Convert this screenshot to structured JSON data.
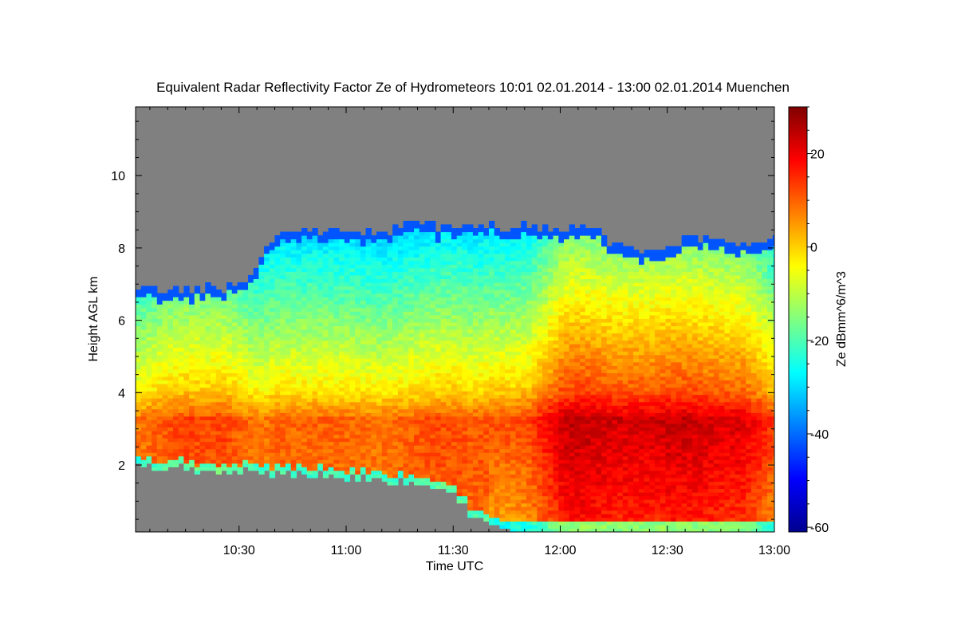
{
  "chart_data": {
    "type": "heatmap",
    "title": "Equivalent Radar Reflectivity Factor Ze of Hydrometeors   10:01 02.01.2014 - 13:00 02.01.2014 Muenchen",
    "xlabel": "Time UTC",
    "ylabel": "Height AGL km",
    "colorbar_label": "Ze dBmm^6/m^3",
    "x_range_minutes_utc": [
      601,
      780
    ],
    "x_ticks": [
      {
        "minutes": 630,
        "label": "10:30"
      },
      {
        "minutes": 660,
        "label": "11:00"
      },
      {
        "minutes": 690,
        "label": "11:30"
      },
      {
        "minutes": 720,
        "label": "12:00"
      },
      {
        "minutes": 750,
        "label": "12:30"
      },
      {
        "minutes": 780,
        "label": "13:00"
      }
    ],
    "y_range_km": [
      0.15,
      11.9
    ],
    "y_ticks": [
      {
        "value": 2,
        "label": "2"
      },
      {
        "value": 4,
        "label": "4"
      },
      {
        "value": 6,
        "label": "6"
      },
      {
        "value": 8,
        "label": "8"
      },
      {
        "value": 10,
        "label": "10"
      }
    ],
    "colorbar_range": [
      -61,
      30
    ],
    "colorbar_ticks": [
      {
        "value": 20,
        "label": "20"
      },
      {
        "value": 0,
        "label": "0"
      },
      {
        "value": -20,
        "label": "-20"
      },
      {
        "value": -40,
        "label": "-40"
      },
      {
        "value": -60,
        "label": "-60"
      }
    ],
    "no_data_color": "#808080",
    "colormap": "jet",
    "cloud_profile": {
      "time_minutes": [
        601,
        605,
        610,
        615,
        620,
        625,
        630,
        635,
        640,
        645,
        650,
        655,
        660,
        665,
        670,
        675,
        680,
        685,
        690,
        695,
        700,
        705,
        710,
        715,
        720,
        725,
        730,
        735,
        740,
        745,
        750,
        755,
        760,
        765,
        770,
        775,
        780
      ],
      "cloud_top_km": [
        6.8,
        6.8,
        6.8,
        6.8,
        6.85,
        6.85,
        7.0,
        7.6,
        8.4,
        8.4,
        8.5,
        8.4,
        8.3,
        8.4,
        8.3,
        8.6,
        8.7,
        8.5,
        8.6,
        8.5,
        8.6,
        8.5,
        8.6,
        8.5,
        8.4,
        8.5,
        8.4,
        8.0,
        7.9,
        7.9,
        8.0,
        8.2,
        8.2,
        8.1,
        8.0,
        8.2,
        8.2
      ],
      "rain_base_km": [
        1.9,
        1.9,
        1.8,
        1.85,
        1.8,
        1.8,
        1.8,
        1.75,
        1.75,
        1.7,
        1.7,
        1.7,
        1.6,
        1.6,
        1.55,
        1.5,
        1.45,
        1.35,
        1.1,
        0.5,
        0.3,
        0.15,
        0.15,
        0.15,
        0.15,
        0.15,
        0.15,
        0.15,
        0.15,
        0.15,
        0.15,
        0.15,
        0.15,
        0.15,
        0.15,
        0.15,
        0.15
      ],
      "max_ze_dbz": [
        8,
        10,
        12,
        13,
        12,
        13,
        10,
        8,
        10,
        10,
        10,
        10,
        10,
        9,
        9,
        10,
        11,
        12,
        12,
        11,
        12,
        12,
        13,
        18,
        24,
        25,
        24,
        23,
        23,
        23,
        24,
        24,
        23,
        22,
        22,
        18,
        12
      ]
    }
  }
}
